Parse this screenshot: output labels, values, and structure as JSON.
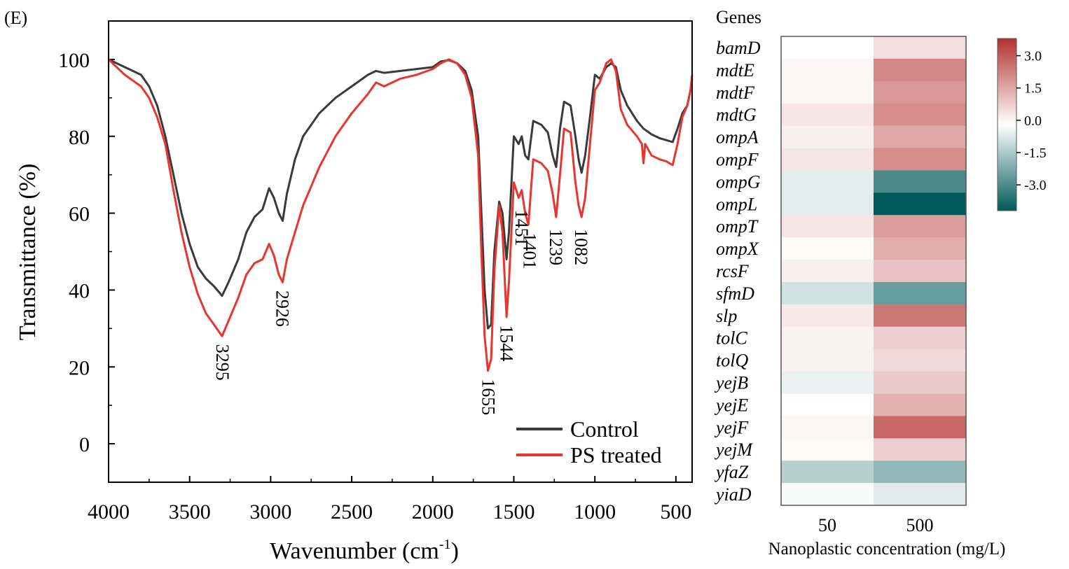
{
  "panel_label": "(E)",
  "chart_data": [
    {
      "type": "line",
      "xlabel": "Wavenumber (cm",
      "xlabel_sup": "-1",
      "xlabel_end": ")",
      "ylabel": "Transmittance (%)",
      "xlim": [
        4000,
        400
      ],
      "ylim": [
        -10,
        110
      ],
      "x_ticks": [
        4000,
        3500,
        3000,
        2500,
        2000,
        1500,
        1000,
        500
      ],
      "y_ticks": [
        0,
        20,
        40,
        60,
        80,
        100
      ],
      "legend_position": "bottom-right",
      "series": [
        {
          "name": "Control",
          "color": "#3a3a3a",
          "points": [
            [
              4000,
              100
            ],
            [
              3900,
              98
            ],
            [
              3800,
              96
            ],
            [
              3750,
              93
            ],
            [
              3700,
              88
            ],
            [
              3650,
              80
            ],
            [
              3600,
              70
            ],
            [
              3550,
              60
            ],
            [
              3500,
              52
            ],
            [
              3450,
              46
            ],
            [
              3400,
              43
            ],
            [
              3350,
              41
            ],
            [
              3300,
              38.5
            ],
            [
              3260,
              42
            ],
            [
              3200,
              48
            ],
            [
              3150,
              55
            ],
            [
              3100,
              59
            ],
            [
              3050,
              61
            ],
            [
              3010,
              66.5
            ],
            [
              2980,
              64
            ],
            [
              2950,
              60
            ],
            [
              2926,
              58
            ],
            [
              2900,
              65
            ],
            [
              2850,
              74
            ],
            [
              2800,
              80
            ],
            [
              2700,
              86
            ],
            [
              2600,
              90
            ],
            [
              2500,
              93
            ],
            [
              2400,
              96
            ],
            [
              2350,
              97
            ],
            [
              2300,
              96.5
            ],
            [
              2200,
              97
            ],
            [
              2100,
              97.5
            ],
            [
              2000,
              98
            ],
            [
              1950,
              99.5
            ],
            [
              1900,
              99.8
            ],
            [
              1850,
              99
            ],
            [
              1800,
              97
            ],
            [
              1760,
              92
            ],
            [
              1720,
              80
            ],
            [
              1700,
              60
            ],
            [
              1680,
              40
            ],
            [
              1660,
              30
            ],
            [
              1640,
              31
            ],
            [
              1620,
              50
            ],
            [
              1590,
              63
            ],
            [
              1570,
              60
            ],
            [
              1545,
              48
            ],
            [
              1530,
              55
            ],
            [
              1500,
              80
            ],
            [
              1470,
              78
            ],
            [
              1451,
              80
            ],
            [
              1430,
              75
            ],
            [
              1410,
              74
            ],
            [
              1380,
              84
            ],
            [
              1330,
              83
            ],
            [
              1290,
              81
            ],
            [
              1260,
              75
            ],
            [
              1239,
              72
            ],
            [
              1215,
              82
            ],
            [
              1190,
              89
            ],
            [
              1150,
              88
            ],
            [
              1120,
              80
            ],
            [
              1100,
              74
            ],
            [
              1082,
              70.5
            ],
            [
              1060,
              75
            ],
            [
              1030,
              85
            ],
            [
              1000,
              96
            ],
            [
              970,
              95
            ],
            [
              930,
              98
            ],
            [
              900,
              99
            ],
            [
              870,
              98
            ],
            [
              840,
              92
            ],
            [
              800,
              88
            ],
            [
              740,
              84
            ],
            [
              700,
              82
            ],
            [
              650,
              80.5
            ],
            [
              600,
              79.5
            ],
            [
              560,
              79
            ],
            [
              520,
              78.5
            ],
            [
              490,
              82
            ],
            [
              460,
              86
            ],
            [
              430,
              88
            ],
            [
              410,
              92
            ],
            [
              400,
              95
            ]
          ]
        },
        {
          "name": "PS treated",
          "color": "#e8352e",
          "points": [
            [
              4000,
              100
            ],
            [
              3900,
              96
            ],
            [
              3800,
              93
            ],
            [
              3750,
              90
            ],
            [
              3700,
              85
            ],
            [
              3650,
              78
            ],
            [
              3600,
              66
            ],
            [
              3550,
              55
            ],
            [
              3500,
              46
            ],
            [
              3450,
              39
            ],
            [
              3400,
              34
            ],
            [
              3350,
              31
            ],
            [
              3300,
              28
            ],
            [
              3260,
              32
            ],
            [
              3200,
              38
            ],
            [
              3150,
              44
            ],
            [
              3100,
              47
            ],
            [
              3050,
              48
            ],
            [
              3010,
              52
            ],
            [
              2980,
              49
            ],
            [
              2950,
              44
            ],
            [
              2926,
              42
            ],
            [
              2900,
              48
            ],
            [
              2850,
              55
            ],
            [
              2800,
              62
            ],
            [
              2700,
              72
            ],
            [
              2600,
              80
            ],
            [
              2500,
              86
            ],
            [
              2400,
              91
            ],
            [
              2350,
              94
            ],
            [
              2300,
              93
            ],
            [
              2200,
              95
            ],
            [
              2100,
              96
            ],
            [
              2000,
              97.5
            ],
            [
              1950,
              99
            ],
            [
              1900,
              100
            ],
            [
              1850,
              99
            ],
            [
              1800,
              96
            ],
            [
              1760,
              90
            ],
            [
              1720,
              75
            ],
            [
              1700,
              50
            ],
            [
              1680,
              28
            ],
            [
              1660,
              19
            ],
            [
              1640,
              22
            ],
            [
              1620,
              45
            ],
            [
              1590,
              62
            ],
            [
              1570,
              55
            ],
            [
              1545,
              33
            ],
            [
              1530,
              42
            ],
            [
              1500,
              68
            ],
            [
              1470,
              64
            ],
            [
              1451,
              66
            ],
            [
              1430,
              60
            ],
            [
              1410,
              57
            ],
            [
              1380,
              74
            ],
            [
              1330,
              73
            ],
            [
              1290,
              71
            ],
            [
              1260,
              65
            ],
            [
              1239,
              59
            ],
            [
              1215,
              70
            ],
            [
              1190,
              82
            ],
            [
              1150,
              81
            ],
            [
              1120,
              68
            ],
            [
              1100,
              62
            ],
            [
              1082,
              59
            ],
            [
              1060,
              64
            ],
            [
              1030,
              78
            ],
            [
              1000,
              92
            ],
            [
              970,
              94
            ],
            [
              930,
              99
            ],
            [
              900,
              100
            ],
            [
              870,
              97
            ],
            [
              840,
              87
            ],
            [
              800,
              83
            ],
            [
              740,
              80
            ],
            [
              710,
              78
            ],
            [
              700,
              73
            ],
            [
              690,
              78
            ],
            [
              650,
              75
            ],
            [
              600,
              74
            ],
            [
              560,
              73.5
            ],
            [
              520,
              72.5
            ],
            [
              490,
              78
            ],
            [
              460,
              85
            ],
            [
              430,
              88
            ],
            [
              410,
              92
            ],
            [
              400,
              96
            ]
          ]
        }
      ],
      "annotations": [
        {
          "text": "3295",
          "x": 3295,
          "y": 27
        },
        {
          "text": "2926",
          "x": 2926,
          "y": 41
        },
        {
          "text": "1655",
          "x": 1655,
          "y": 18
        },
        {
          "text": "1544",
          "x": 1544,
          "y": 32
        },
        {
          "text": "1451",
          "x": 1451,
          "y": 62
        },
        {
          "text": "1401",
          "x": 1401,
          "y": 56
        },
        {
          "text": "1239",
          "x": 1239,
          "y": 57
        },
        {
          "text": "1082",
          "x": 1082,
          "y": 57
        }
      ]
    },
    {
      "type": "heatmap",
      "title": "Genes",
      "xlabel": "Nanoplastic concentration (mg/L)",
      "columns": [
        "50",
        "500"
      ],
      "rows": [
        "bamD",
        "mdtE",
        "mdtF",
        "mdtG",
        "ompA",
        "ompF",
        "ompG",
        "ompL",
        "ompT",
        "ompX",
        "rcsF",
        "sfmD",
        "slp",
        "tolC",
        "tolQ",
        "yejB",
        "yejE",
        "yejF",
        "yejM",
        "yfaZ",
        "yiaD"
      ],
      "values": [
        [
          0.0,
          0.6
        ],
        [
          0.15,
          2.2
        ],
        [
          0.15,
          1.9
        ],
        [
          0.45,
          2.1
        ],
        [
          0.3,
          1.6
        ],
        [
          0.45,
          2.1
        ],
        [
          -0.45,
          -3.0
        ],
        [
          -0.45,
          -4.2
        ],
        [
          0.45,
          1.8
        ],
        [
          0.1,
          1.5
        ],
        [
          0.3,
          1.1
        ],
        [
          -0.75,
          -2.5
        ],
        [
          0.4,
          2.5
        ],
        [
          0.25,
          0.9
        ],
        [
          0.25,
          0.7
        ],
        [
          -0.35,
          1.0
        ],
        [
          0.0,
          1.4
        ],
        [
          0.15,
          2.8
        ],
        [
          0.1,
          0.9
        ],
        [
          -1.2,
          -1.8
        ],
        [
          -0.1,
          -0.5
        ]
      ],
      "colorbar": {
        "ticks": [
          "3.0",
          "1.5",
          "0.0",
          "-1.5",
          "-3.0"
        ],
        "tick_values": [
          3.0,
          1.5,
          0.0,
          -1.5,
          -3.0
        ],
        "range": [
          -4.2,
          3.8
        ],
        "colors": {
          "high": "#b3312f",
          "mid": "#ffffff",
          "low": "#005a5a"
        }
      }
    }
  ]
}
